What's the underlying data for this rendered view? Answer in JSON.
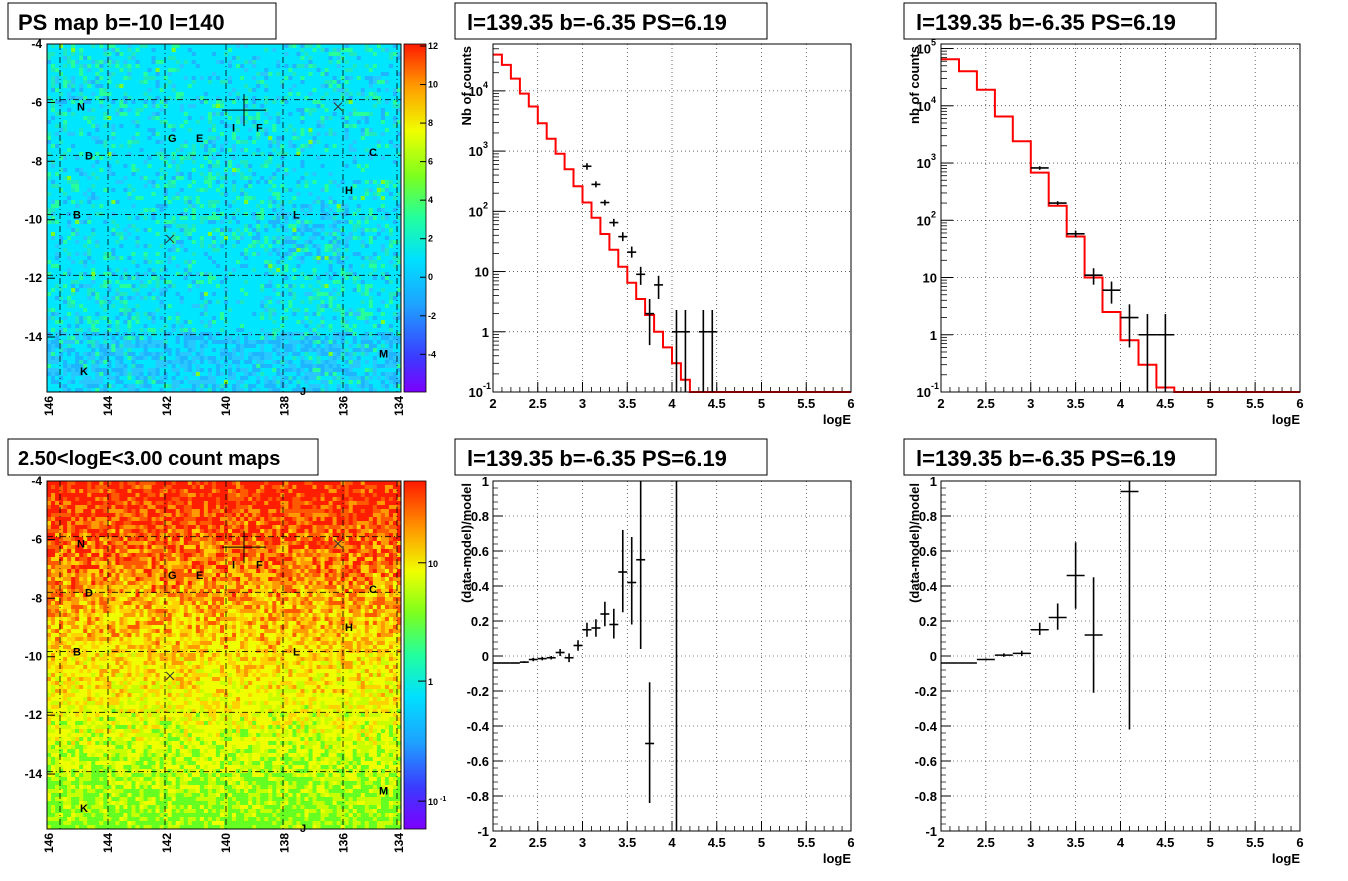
{
  "colors": {
    "data": "#000000",
    "model": "#ff0000",
    "grid": "#000000"
  },
  "maps": [
    {
      "title": "PS map b=-10 l=140",
      "ylabels": [
        "-4",
        "-6",
        "-8",
        "-10",
        "-12",
        "-14"
      ],
      "xlabels": [
        "146",
        "144",
        "142",
        "140",
        "138",
        "136",
        "134"
      ],
      "source_labels": [
        "N",
        "G",
        "E",
        "I",
        "F",
        "D",
        "C",
        "H",
        "B",
        "L",
        "M",
        "K",
        "J"
      ],
      "colorbar": {
        "scale": "linear",
        "ticks": [
          "12",
          "10",
          "8",
          "6",
          "4",
          "2",
          "0",
          "-2",
          "-4"
        ]
      }
    },
    {
      "title": "2.50<logE<3.00 count maps",
      "ylabels": [
        "-4",
        "-6",
        "-8",
        "-10",
        "-12",
        "-14"
      ],
      "xlabels": [
        "146",
        "144",
        "142",
        "140",
        "138",
        "136",
        "134"
      ],
      "source_labels": [
        "N",
        "G",
        "E",
        "I",
        "F",
        "D",
        "C",
        "H",
        "B",
        "L",
        "M",
        "K",
        "J"
      ],
      "colorbar": {
        "scale": "log",
        "ticks": [
          "10",
          "1",
          "10"
        ],
        "tick_exp": "-1"
      }
    }
  ],
  "chart_data": [
    {
      "type": "line",
      "title": "l=139.35 b=-6.35 PS=6.19",
      "xlabel": "logE",
      "ylabel": "Nb of counts",
      "xlim": [
        2,
        6
      ],
      "ylim": [
        0.1,
        60000
      ],
      "yscale": "log",
      "xticks": [
        "2",
        "2.5",
        "3",
        "3.5",
        "4",
        "4.5",
        "5",
        "5.5",
        "6"
      ],
      "yticks": [
        {
          "value": 10000,
          "base": "10",
          "exp": "4"
        },
        {
          "value": 1000,
          "base": "10",
          "exp": "3"
        },
        {
          "value": 100,
          "base": "10",
          "exp": "2"
        },
        {
          "value": 10,
          "base": "10",
          "exp": ""
        },
        {
          "value": 1,
          "base": "1",
          "exp": ""
        },
        {
          "value": 0.1,
          "base": "10",
          "exp": "-1"
        }
      ],
      "model_bins": [
        2,
        2.1,
        2.2,
        2.3,
        2.4,
        2.5,
        2.6,
        2.7,
        2.8,
        2.9,
        3.0,
        3.1,
        3.2,
        3.3,
        3.4,
        3.5,
        3.6,
        3.7,
        3.8,
        3.9,
        4.0,
        4.1,
        4.2,
        4.3,
        4.4,
        4.5,
        6.0
      ],
      "model_values": [
        40000,
        27000,
        16000,
        9000,
        5500,
        2900,
        1600,
        900,
        500,
        260,
        140,
        78,
        42,
        23,
        12,
        6.5,
        3.5,
        1.9,
        1.0,
        0.55,
        0.3,
        0.16,
        0.09,
        0.09,
        0.09,
        0.09
      ],
      "points": [
        {
          "x": 3.05,
          "xerr": 0.05,
          "y": 560,
          "ylo": 490,
          "yhi": 630
        },
        {
          "x": 3.15,
          "xerr": 0.05,
          "y": 280,
          "ylo": 250,
          "yhi": 315
        },
        {
          "x": 3.25,
          "xerr": 0.05,
          "y": 140,
          "ylo": 125,
          "yhi": 155
        },
        {
          "x": 3.35,
          "xerr": 0.05,
          "y": 65,
          "ylo": 56,
          "yhi": 75
        },
        {
          "x": 3.45,
          "xerr": 0.05,
          "y": 38,
          "ylo": 32,
          "yhi": 45
        },
        {
          "x": 3.55,
          "xerr": 0.05,
          "y": 21,
          "ylo": 17,
          "yhi": 26
        },
        {
          "x": 3.65,
          "xerr": 0.05,
          "y": 9,
          "ylo": 6,
          "yhi": 12
        },
        {
          "x": 3.75,
          "xerr": 0.05,
          "y": 2,
          "ylo": 0.6,
          "yhi": 3.5
        },
        {
          "x": 3.85,
          "xerr": 0.05,
          "y": 6,
          "ylo": 3.5,
          "yhi": 8.5
        },
        {
          "x": 4.05,
          "xerr": 0.05,
          "y": 1,
          "ylo": 0.1,
          "yhi": 2.3
        },
        {
          "x": 4.15,
          "xerr": 0.05,
          "y": 1,
          "ylo": 0.1,
          "yhi": 2.3
        },
        {
          "x": 4.35,
          "xerr": 0.05,
          "y": 1,
          "ylo": 0.1,
          "yhi": 2.3
        },
        {
          "x": 4.45,
          "xerr": 0.05,
          "y": 1,
          "ylo": 0.1,
          "yhi": 2.3
        }
      ]
    },
    {
      "type": "line",
      "title": "l=139.35 b=-6.35 PS=6.19",
      "xlabel": "logE",
      "ylabel": "nb of counts",
      "xlim": [
        2,
        6
      ],
      "ylim": [
        0.1,
        120000
      ],
      "yscale": "log",
      "xticks": [
        "2",
        "2.5",
        "3",
        "3.5",
        "4",
        "4.5",
        "5",
        "5.5",
        "6"
      ],
      "yticks": [
        {
          "value": 100000,
          "base": "10",
          "exp": "5"
        },
        {
          "value": 10000,
          "base": "10",
          "exp": "4"
        },
        {
          "value": 1000,
          "base": "10",
          "exp": "3"
        },
        {
          "value": 100,
          "base": "10",
          "exp": "2"
        },
        {
          "value": 10,
          "base": "10",
          "exp": ""
        },
        {
          "value": 1,
          "base": "1",
          "exp": ""
        },
        {
          "value": 0.1,
          "base": "10",
          "exp": "-1"
        }
      ],
      "model_bins": [
        2,
        2.2,
        2.4,
        2.6,
        2.8,
        3.0,
        3.2,
        3.4,
        3.6,
        3.8,
        4.0,
        4.2,
        4.4,
        4.6,
        6.0
      ],
      "model_values": [
        65000,
        40000,
        19000,
        6500,
        2400,
        680,
        180,
        52,
        10,
        2.5,
        0.8,
        0.3,
        0.12,
        0.09
      ],
      "points": [
        {
          "x": 3.1,
          "xerr": 0.1,
          "y": 820,
          "ylo": 760,
          "yhi": 880
        },
        {
          "x": 3.3,
          "xerr": 0.1,
          "y": 200,
          "ylo": 185,
          "yhi": 215
        },
        {
          "x": 3.5,
          "xerr": 0.1,
          "y": 58,
          "ylo": 50,
          "yhi": 66
        },
        {
          "x": 3.7,
          "xerr": 0.1,
          "y": 11,
          "ylo": 7.5,
          "yhi": 14.5
        },
        {
          "x": 3.9,
          "xerr": 0.1,
          "y": 6,
          "ylo": 3.5,
          "yhi": 8.5
        },
        {
          "x": 4.1,
          "xerr": 0.1,
          "y": 2,
          "ylo": 0.6,
          "yhi": 3.4
        },
        {
          "x": 4.3,
          "xerr": 0.1,
          "y": 1,
          "ylo": 0.1,
          "yhi": 2.3
        },
        {
          "x": 4.5,
          "xerr": 0.1,
          "y": 1,
          "ylo": 0.1,
          "yhi": 2.3
        }
      ]
    },
    {
      "type": "scatter",
      "title": "l=139.35 b=-6.35 PS=6.19",
      "xlabel": "logE",
      "ylabel": "(data-model)/model",
      "xlim": [
        2,
        6
      ],
      "ylim": [
        -1,
        1
      ],
      "yscale": "linear",
      "xticks": [
        "2",
        "2.5",
        "3",
        "3.5",
        "4",
        "4.5",
        "5",
        "5.5",
        "6"
      ],
      "yticks": [
        "1",
        "0.8",
        "0.6",
        "0.4",
        "0.2",
        "0",
        "-0.2",
        "-0.4",
        "-0.6",
        "-0.8",
        "-1"
      ],
      "points": [
        {
          "x": 2.05,
          "xerr": 0.05,
          "y": -0.04,
          "ylo": -0.04,
          "yhi": -0.04
        },
        {
          "x": 2.15,
          "xerr": 0.05,
          "y": -0.04,
          "ylo": -0.04,
          "yhi": -0.04
        },
        {
          "x": 2.25,
          "xerr": 0.05,
          "y": -0.04,
          "ylo": -0.04,
          "yhi": -0.04
        },
        {
          "x": 2.35,
          "xerr": 0.05,
          "y": -0.035,
          "ylo": -0.04,
          "yhi": -0.03
        },
        {
          "x": 2.45,
          "xerr": 0.05,
          "y": -0.02,
          "ylo": -0.03,
          "yhi": -0.01
        },
        {
          "x": 2.55,
          "xerr": 0.05,
          "y": -0.015,
          "ylo": -0.025,
          "yhi": -0.005
        },
        {
          "x": 2.65,
          "xerr": 0.05,
          "y": -0.01,
          "ylo": -0.02,
          "yhi": 0.0
        },
        {
          "x": 2.75,
          "xerr": 0.05,
          "y": 0.02,
          "ylo": 0.0,
          "yhi": 0.04
        },
        {
          "x": 2.85,
          "xerr": 0.05,
          "y": -0.01,
          "ylo": -0.035,
          "yhi": 0.015
        },
        {
          "x": 2.95,
          "xerr": 0.05,
          "y": 0.06,
          "ylo": 0.03,
          "yhi": 0.09
        },
        {
          "x": 3.05,
          "xerr": 0.05,
          "y": 0.15,
          "ylo": 0.11,
          "yhi": 0.19
        },
        {
          "x": 3.15,
          "xerr": 0.05,
          "y": 0.16,
          "ylo": 0.11,
          "yhi": 0.21
        },
        {
          "x": 3.25,
          "xerr": 0.05,
          "y": 0.24,
          "ylo": 0.17,
          "yhi": 0.31
        },
        {
          "x": 3.35,
          "xerr": 0.05,
          "y": 0.18,
          "ylo": 0.1,
          "yhi": 0.27
        },
        {
          "x": 3.45,
          "xerr": 0.05,
          "y": 0.48,
          "ylo": 0.25,
          "yhi": 0.72
        },
        {
          "x": 3.55,
          "xerr": 0.05,
          "y": 0.42,
          "ylo": 0.18,
          "yhi": 0.68
        },
        {
          "x": 3.65,
          "xerr": 0.05,
          "y": 0.55,
          "ylo": 0.04,
          "yhi": 1.0
        },
        {
          "x": 3.75,
          "xerr": 0.05,
          "y": -0.5,
          "ylo": -0.84,
          "yhi": -0.15
        },
        {
          "x": 4.05,
          "xerr": 0.0,
          "y": 0.65,
          "ylo": -1.0,
          "yhi": 1.0
        }
      ]
    },
    {
      "type": "scatter",
      "title": "l=139.35 b=-6.35 PS=6.19",
      "xlabel": "logE",
      "ylabel": "(data-model)/model",
      "xlim": [
        2,
        6
      ],
      "ylim": [
        -1,
        1
      ],
      "yscale": "linear",
      "xticks": [
        "2",
        "2.5",
        "3",
        "3.5",
        "4",
        "4.5",
        "5",
        "5.5",
        "6"
      ],
      "yticks": [
        "1",
        "0.8",
        "0.6",
        "0.4",
        "0.2",
        "0",
        "-0.2",
        "-0.4",
        "-0.6",
        "-0.8",
        "-1"
      ],
      "points": [
        {
          "x": 2.1,
          "xerr": 0.1,
          "y": -0.04,
          "ylo": -0.04,
          "yhi": -0.04
        },
        {
          "x": 2.3,
          "xerr": 0.1,
          "y": -0.04,
          "ylo": -0.04,
          "yhi": -0.04
        },
        {
          "x": 2.5,
          "xerr": 0.1,
          "y": -0.02,
          "ylo": -0.025,
          "yhi": -0.015
        },
        {
          "x": 2.7,
          "xerr": 0.1,
          "y": 0.005,
          "ylo": -0.005,
          "yhi": 0.015
        },
        {
          "x": 2.9,
          "xerr": 0.1,
          "y": 0.015,
          "ylo": 0.0,
          "yhi": 0.03
        },
        {
          "x": 3.1,
          "xerr": 0.1,
          "y": 0.15,
          "ylo": 0.12,
          "yhi": 0.19
        },
        {
          "x": 3.3,
          "xerr": 0.1,
          "y": 0.22,
          "ylo": 0.15,
          "yhi": 0.3
        },
        {
          "x": 3.5,
          "xerr": 0.1,
          "y": 0.46,
          "ylo": 0.27,
          "yhi": 0.65
        },
        {
          "x": 3.7,
          "xerr": 0.1,
          "y": 0.12,
          "ylo": -0.21,
          "yhi": 0.45
        },
        {
          "x": 4.1,
          "xerr": 0.1,
          "y": 0.94,
          "ylo": -0.42,
          "yhi": 1.0
        }
      ]
    }
  ]
}
